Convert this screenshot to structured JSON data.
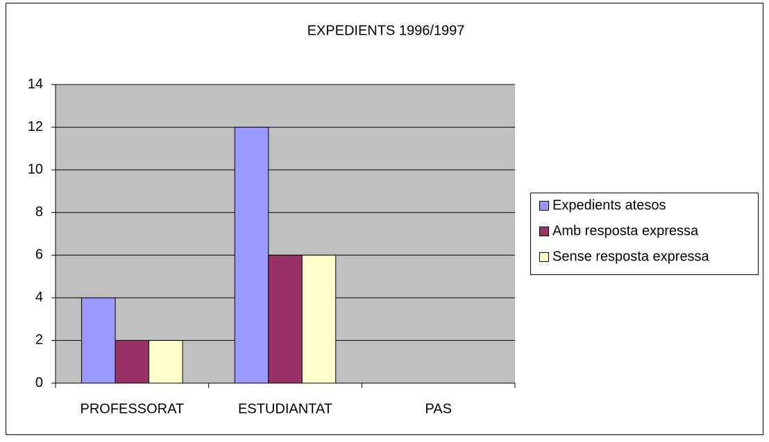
{
  "chart_data": {
    "type": "bar",
    "title": "EXPEDIENTS 1996/1997",
    "categories": [
      "PROFESSORAT",
      "ESTUDIANTAT",
      "PAS"
    ],
    "series": [
      {
        "name": "Expedients atesos",
        "color": "#9999ff",
        "values": [
          4,
          12,
          0
        ]
      },
      {
        "name": "Amb resposta expressa",
        "color": "#993366",
        "values": [
          2,
          6,
          0
        ]
      },
      {
        "name": "Sense resposta expressa",
        "color": "#ffffcc",
        "values": [
          2,
          6,
          0
        ]
      }
    ],
    "ylim": [
      0,
      14
    ],
    "yticks": [
      0,
      2,
      4,
      6,
      8,
      10,
      12,
      14
    ],
    "grid": true,
    "legend": "right"
  }
}
